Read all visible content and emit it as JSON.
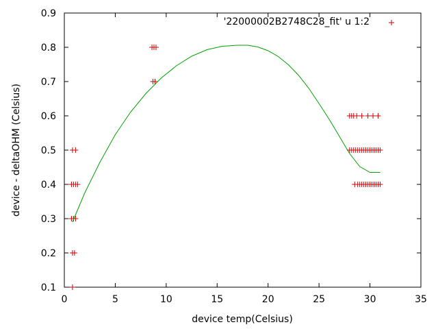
{
  "chart_data": {
    "type": "scatter",
    "title": "",
    "xlabel": "device temp(Celsius)",
    "ylabel": "device - deltaOHM (Celsius)",
    "xlim": [
      0,
      35
    ],
    "ylim": [
      0.1,
      0.9
    ],
    "xticks": [
      0,
      5,
      10,
      15,
      20,
      25,
      30,
      35
    ],
    "yticks": [
      0.1,
      0.2,
      0.3,
      0.4,
      0.5,
      0.6,
      0.7,
      0.8,
      0.9
    ],
    "grid": false,
    "legend_position": "top-right",
    "series": [
      {
        "name": "'22000002B2748C28_fit' u 1:2",
        "style": "points",
        "color": "#cc0000",
        "points": [
          [
            0.8,
            0.1
          ],
          [
            0.8,
            0.2
          ],
          [
            1.0,
            0.2
          ],
          [
            0.7,
            0.3
          ],
          [
            0.9,
            0.3
          ],
          [
            1.1,
            0.3
          ],
          [
            0.7,
            0.4
          ],
          [
            0.9,
            0.4
          ],
          [
            1.1,
            0.4
          ],
          [
            1.3,
            0.4
          ],
          [
            0.8,
            0.5
          ],
          [
            1.1,
            0.5
          ],
          [
            8.6,
            0.8
          ],
          [
            8.8,
            0.8
          ],
          [
            9.0,
            0.8
          ],
          [
            8.7,
            0.7
          ],
          [
            8.9,
            0.7
          ],
          [
            28.0,
            0.6
          ],
          [
            28.2,
            0.6
          ],
          [
            28.4,
            0.6
          ],
          [
            28.7,
            0.6
          ],
          [
            29.2,
            0.6
          ],
          [
            29.8,
            0.6
          ],
          [
            30.3,
            0.6
          ],
          [
            30.8,
            0.6
          ],
          [
            28.0,
            0.5
          ],
          [
            28.2,
            0.5
          ],
          [
            28.4,
            0.5
          ],
          [
            28.6,
            0.5
          ],
          [
            28.8,
            0.5
          ],
          [
            29.0,
            0.5
          ],
          [
            29.2,
            0.5
          ],
          [
            29.4,
            0.5
          ],
          [
            29.6,
            0.5
          ],
          [
            29.8,
            0.5
          ],
          [
            30.0,
            0.5
          ],
          [
            30.2,
            0.5
          ],
          [
            30.4,
            0.5
          ],
          [
            30.6,
            0.5
          ],
          [
            30.8,
            0.5
          ],
          [
            31.0,
            0.5
          ],
          [
            28.5,
            0.4
          ],
          [
            28.8,
            0.4
          ],
          [
            29.0,
            0.4
          ],
          [
            29.2,
            0.4
          ],
          [
            29.4,
            0.4
          ],
          [
            29.6,
            0.4
          ],
          [
            29.8,
            0.4
          ],
          [
            30.0,
            0.4
          ],
          [
            30.2,
            0.4
          ],
          [
            30.4,
            0.4
          ],
          [
            30.6,
            0.4
          ],
          [
            30.8,
            0.4
          ],
          [
            31.0,
            0.4
          ]
        ]
      },
      {
        "name": "",
        "style": "line",
        "color": "#00a000",
        "points": [
          [
            0.8,
            0.29
          ],
          [
            2.0,
            0.375
          ],
          [
            3.5,
            0.465
          ],
          [
            5.0,
            0.545
          ],
          [
            6.5,
            0.611
          ],
          [
            8.0,
            0.665
          ],
          [
            9.5,
            0.71
          ],
          [
            11.0,
            0.746
          ],
          [
            12.5,
            0.774
          ],
          [
            14.0,
            0.793
          ],
          [
            15.5,
            0.803
          ],
          [
            17.0,
            0.806
          ],
          [
            18.0,
            0.806
          ],
          [
            19.0,
            0.801
          ],
          [
            20.0,
            0.79
          ],
          [
            21.0,
            0.773
          ],
          [
            22.0,
            0.749
          ],
          [
            23.0,
            0.718
          ],
          [
            24.0,
            0.68
          ],
          [
            25.0,
            0.636
          ],
          [
            26.0,
            0.59
          ],
          [
            27.0,
            0.54
          ],
          [
            28.0,
            0.49
          ],
          [
            29.0,
            0.452
          ],
          [
            30.0,
            0.435
          ],
          [
            31.0,
            0.435
          ]
        ]
      }
    ]
  }
}
